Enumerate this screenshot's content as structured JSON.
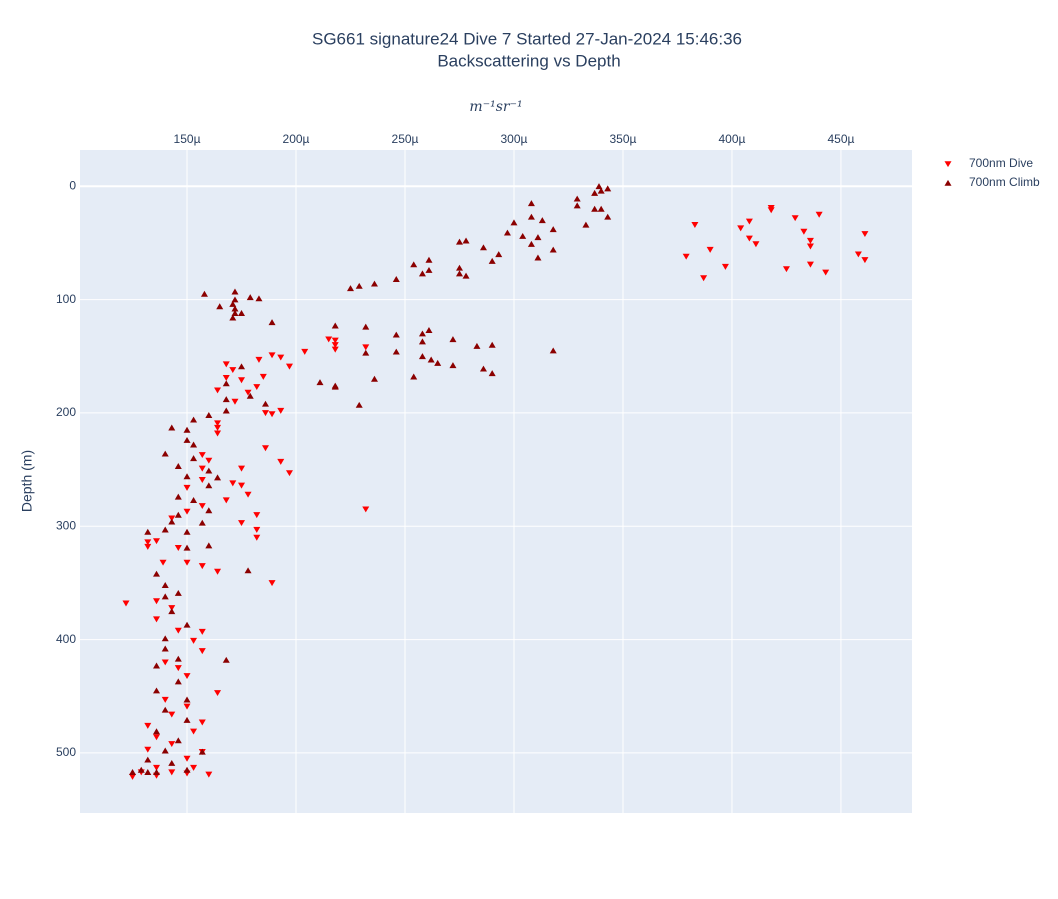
{
  "chart_data": {
    "type": "scatter",
    "title": "SG661 signature24 Dive 7 Started 27-Jan-2024 15:46:36",
    "subtitle": "Backscattering vs Depth",
    "x_label": "m⁻¹sr⁻¹",
    "y_label": "Depth (m)",
    "xlim": [
      0.0001009,
      0.0004826
    ],
    "xticks": [
      {
        "value": 0.00015,
        "label": "150µ"
      },
      {
        "value": 0.0002,
        "label": "200µ"
      },
      {
        "value": 0.00025,
        "label": "250µ"
      },
      {
        "value": 0.0003,
        "label": "300µ"
      },
      {
        "value": 0.00035,
        "label": "350µ"
      },
      {
        "value": 0.0004,
        "label": "400µ"
      },
      {
        "value": 0.00045,
        "label": "450µ"
      }
    ],
    "ylim": [
      -32,
      553
    ],
    "y_reversed": true,
    "yticks": [
      0,
      100,
      200,
      300,
      400,
      500
    ],
    "grid": true,
    "legend": "top-right-outside",
    "series": [
      {
        "name": "700nm Dive",
        "color": "#ff0000",
        "marker": "triangle-down",
        "x": [
          0.000379,
          0.000383,
          0.000387,
          0.00039,
          0.000397,
          0.000404,
          0.000408,
          0.000408,
          0.000411,
          0.000418,
          0.000418,
          0.000425,
          0.000429,
          0.000433,
          0.000436,
          0.000436,
          0.000436,
          0.00044,
          0.000443,
          0.000458,
          0.000461,
          0.000461,
          0.000189,
          0.000193,
          0.000197,
          0.000204,
          0.000185,
          0.000182,
          0.000178,
          0.000172,
          0.000175,
          0.000168,
          0.000168,
          0.000164,
          0.000171,
          0.000183,
          0.000193,
          0.000186,
          0.000189,
          0.000186,
          0.000193,
          0.000197,
          0.000218,
          0.000218,
          0.000215,
          0.000218,
          0.000232,
          0.000232,
          0.000164,
          0.000164,
          0.000164,
          0.000175,
          0.000157,
          0.00016,
          0.000157,
          0.000157,
          0.00015,
          0.000171,
          0.000175,
          0.000178,
          0.000182,
          0.000182,
          0.000182,
          0.000175,
          0.000168,
          0.000157,
          0.00015,
          0.000143,
          0.000136,
          0.000132,
          0.000132,
          0.000139,
          0.00015,
          0.000146,
          0.000157,
          0.000164,
          0.000189,
          0.000122,
          0.000136,
          0.000143,
          0.000136,
          0.000146,
          0.000157,
          0.000153,
          0.000157,
          0.00014,
          0.000146,
          0.00015,
          0.000164,
          0.00014,
          0.000132,
          0.000157,
          0.000143,
          0.00015,
          0.000136,
          0.000153,
          0.000132,
          0.000143,
          0.00015,
          0.000157,
          0.000125,
          0.000136,
          0.000143,
          0.000153,
          0.00016,
          0.00015,
          0.000136,
          0.000129
        ],
        "y": [
          62,
          34,
          81,
          56,
          71,
          37,
          31,
          46,
          51,
          21,
          19,
          73,
          28,
          40,
          48,
          53,
          69,
          25,
          76,
          60,
          65,
          42,
          149,
          151,
          159,
          146,
          168,
          177,
          182,
          190,
          171,
          169,
          157,
          180,
          162,
          153,
          198,
          200,
          201,
          231,
          243,
          253,
          136,
          140,
          135,
          144,
          142,
          285,
          213,
          218,
          209,
          249,
          237,
          242,
          249,
          259,
          266,
          262,
          264,
          272,
          290,
          303,
          310,
          297,
          277,
          282,
          287,
          293,
          313,
          318,
          314,
          332,
          332,
          319,
          335,
          340,
          350,
          368,
          366,
          372,
          382,
          392,
          393,
          401,
          410,
          420,
          425,
          432,
          447,
          453,
          476,
          473,
          466,
          459,
          486,
          481,
          497,
          492,
          505,
          499,
          521,
          513,
          517,
          513,
          519,
          518,
          520,
          517
        ]
      },
      {
        "name": "700nm Climb",
        "color": "#8b0000",
        "marker": "triangle-up",
        "x": [
          0.000339,
          0.00034,
          0.000343,
          0.000337,
          0.000329,
          0.000329,
          0.000337,
          0.00034,
          0.000343,
          0.000333,
          0.000308,
          0.000308,
          0.0003,
          0.000304,
          0.000313,
          0.000318,
          0.000311,
          0.000308,
          0.000311,
          0.000318,
          0.000297,
          0.000293,
          0.00029,
          0.000286,
          0.000278,
          0.000275,
          0.000275,
          0.000275,
          0.000278,
          0.000261,
          0.000261,
          0.000258,
          0.000254,
          0.000246,
          0.000236,
          0.000229,
          0.000225,
          0.000158,
          0.000172,
          0.000172,
          0.000179,
          0.000183,
          0.000171,
          0.000172,
          0.000172,
          0.000171,
          0.000175,
          0.000165,
          0.000189,
          0.000218,
          0.000232,
          0.000246,
          0.000261,
          0.000258,
          0.000272,
          0.000258,
          0.000283,
          0.00029,
          0.000318,
          0.000232,
          0.000246,
          0.000258,
          0.000262,
          0.000265,
          0.000272,
          0.000286,
          0.00029,
          0.000254,
          0.000236,
          0.000211,
          0.000218,
          0.000218,
          0.000229,
          0.000175,
          0.000168,
          0.000179,
          0.000168,
          0.000168,
          0.00016,
          0.000186,
          0.000153,
          0.000143,
          0.00015,
          0.00015,
          0.000153,
          0.00014,
          0.000153,
          0.000146,
          0.00016,
          0.00015,
          0.000164,
          0.00016,
          0.000146,
          0.000153,
          0.000146,
          0.00016,
          0.000157,
          0.000143,
          0.00015,
          0.00014,
          0.000132,
          0.00016,
          0.00015,
          0.000136,
          0.000178,
          0.000168,
          0.00014,
          0.000146,
          0.00014,
          0.000143,
          0.00015,
          0.00014,
          0.00014,
          0.000146,
          0.000136,
          0.000146,
          0.000136,
          0.00015,
          0.00014,
          0.00015,
          0.000136,
          0.000146,
          0.00014,
          0.000157,
          0.000132,
          0.000143,
          0.000129,
          0.000136,
          0.00015,
          0.000132,
          0.000125
        ],
        "y": [
          0,
          4,
          2,
          6,
          11,
          17,
          20,
          20,
          27,
          34,
          15,
          27,
          32,
          44,
          30,
          38,
          45,
          51,
          63,
          56,
          41,
          60,
          66,
          54,
          48,
          49,
          72,
          77,
          79,
          65,
          74,
          77,
          69,
          82,
          86,
          88,
          90,
          95,
          93,
          100,
          98,
          99,
          104,
          108,
          112,
          116,
          112,
          106,
          120,
          123,
          124,
          131,
          127,
          130,
          135,
          137,
          141,
          140,
          145,
          147,
          146,
          150,
          153,
          156,
          158,
          161,
          165,
          168,
          170,
          173,
          176,
          177,
          193,
          159,
          174,
          185,
          188,
          198,
          202,
          192,
          206,
          213,
          215,
          224,
          228,
          236,
          240,
          247,
          251,
          256,
          257,
          264,
          274,
          277,
          290,
          286,
          297,
          296,
          305,
          303,
          305,
          317,
          319,
          342,
          339,
          418,
          352,
          359,
          362,
          375,
          387,
          399,
          408,
          417,
          423,
          437,
          445,
          453,
          462,
          471,
          481,
          489,
          498,
          499,
          506,
          509,
          515,
          517,
          515,
          517,
          517
        ]
      }
    ]
  }
}
